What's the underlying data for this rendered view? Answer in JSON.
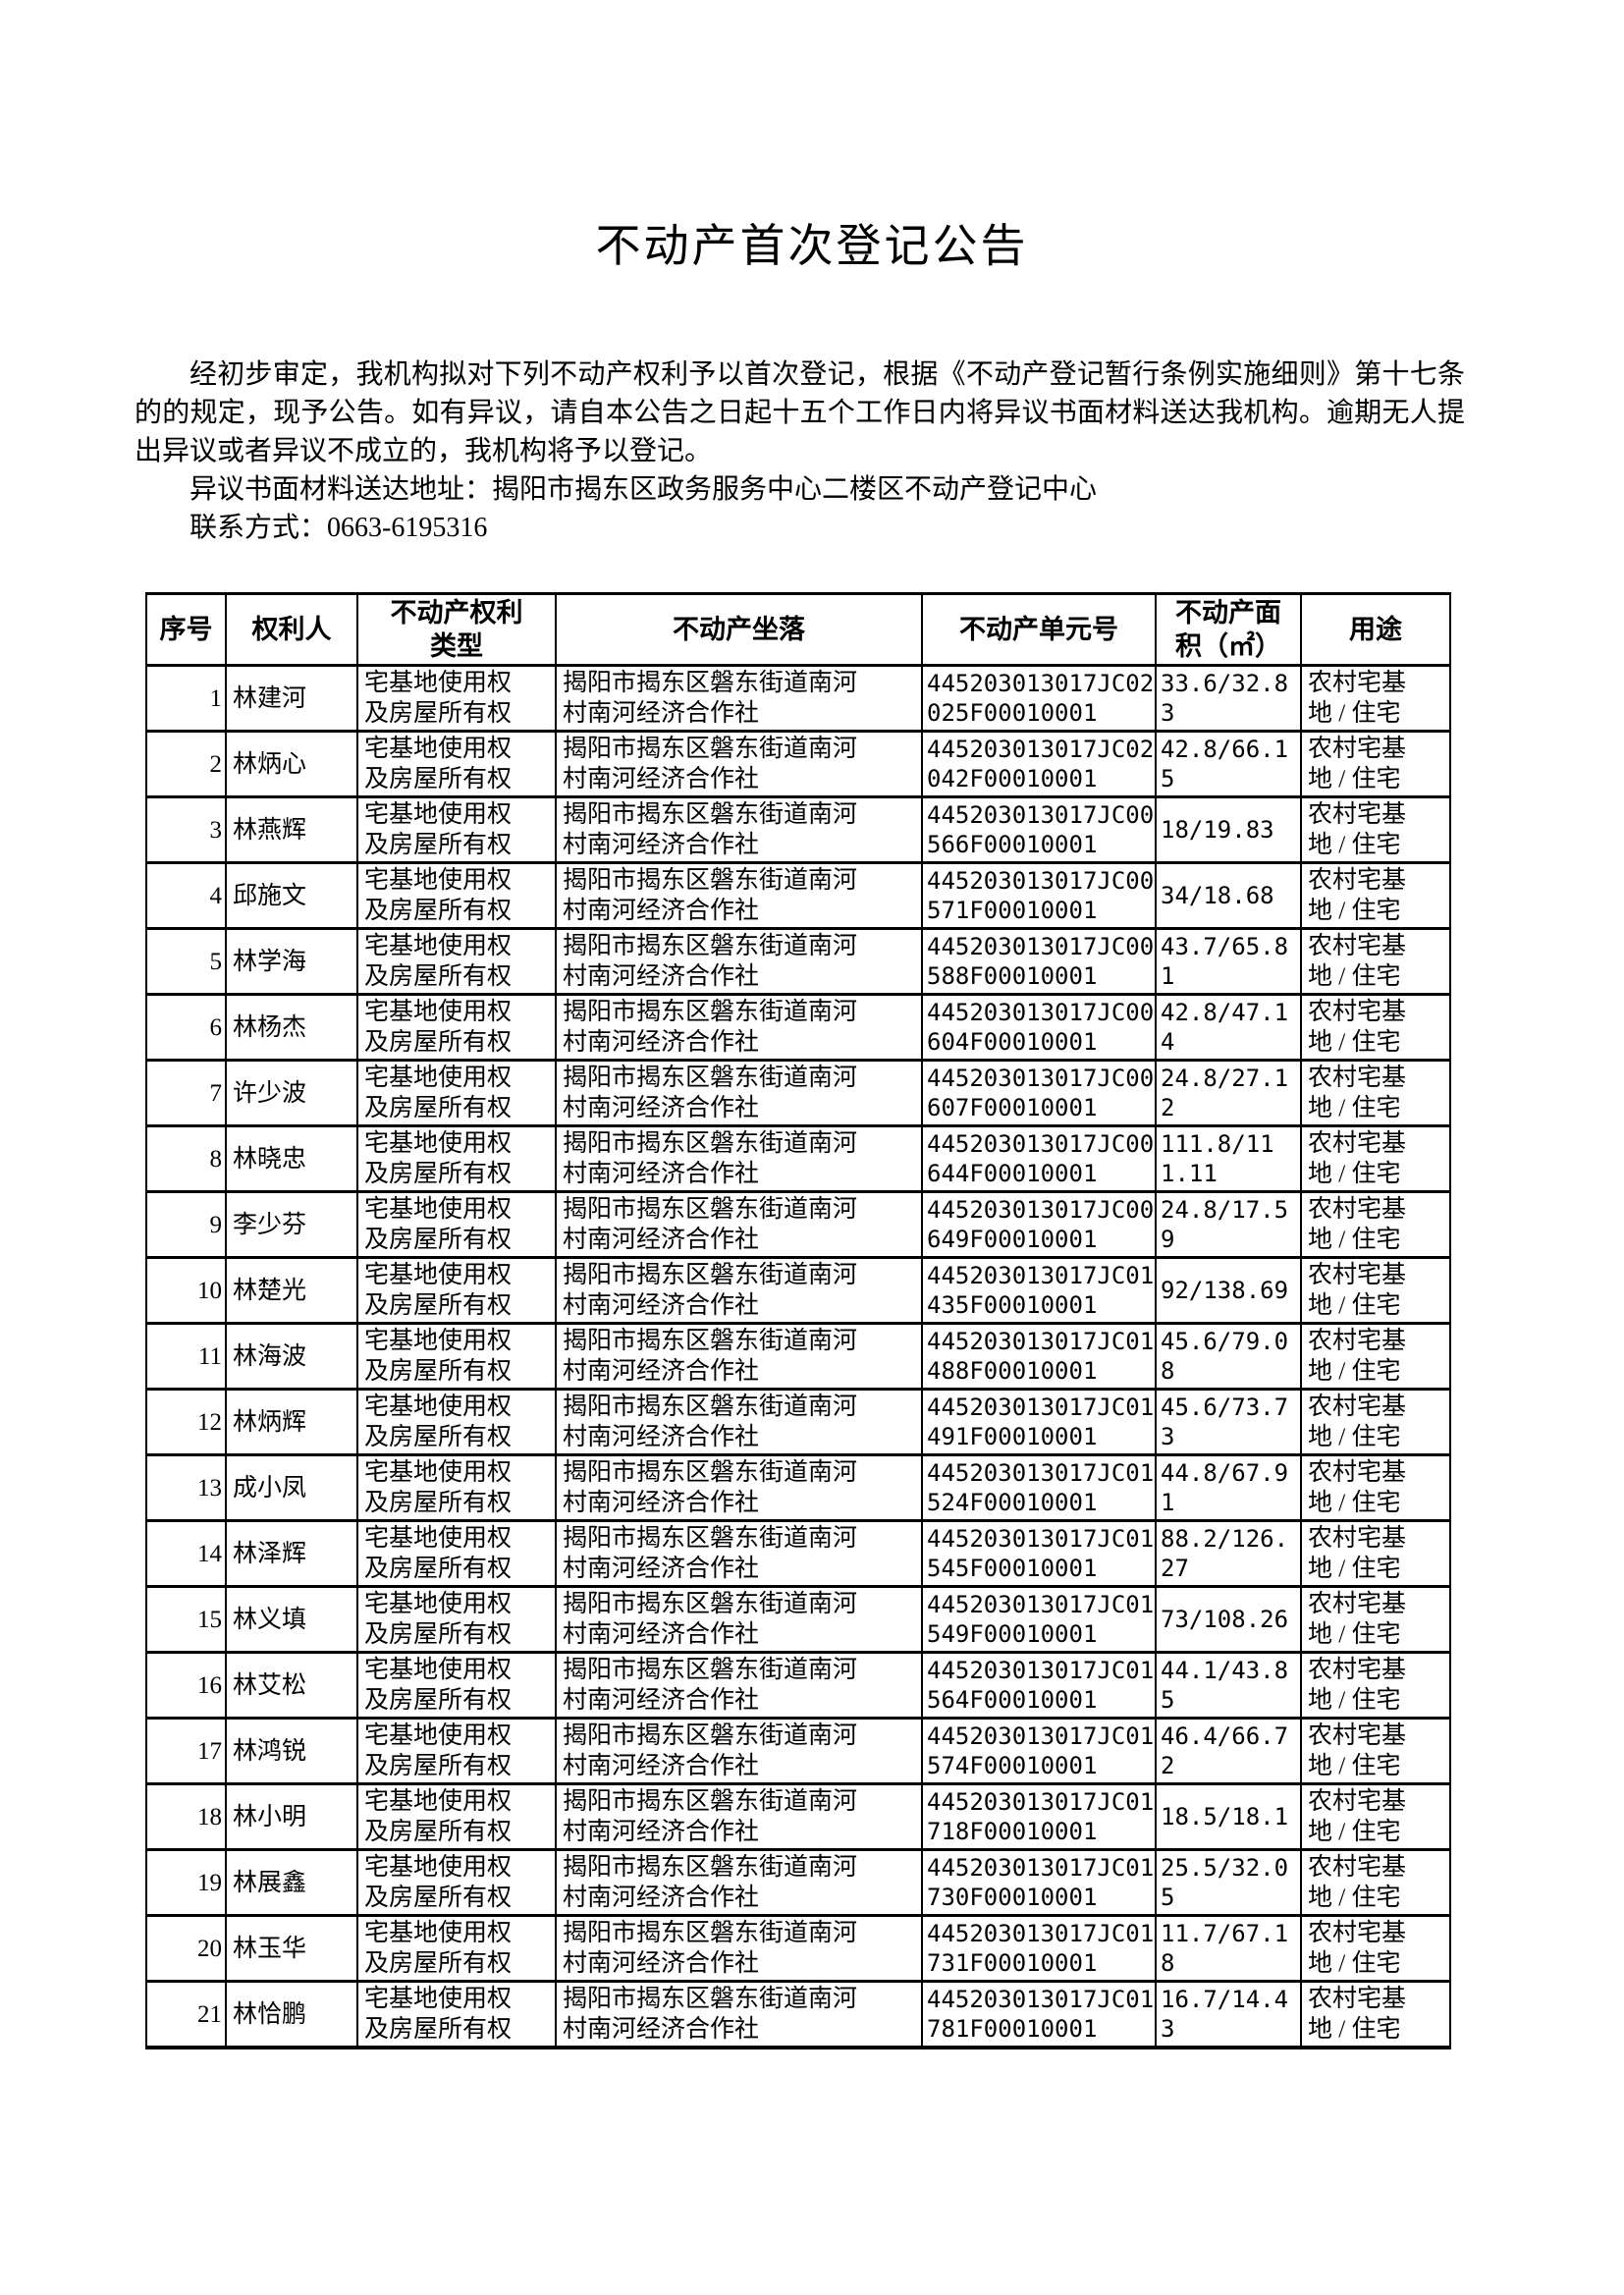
{
  "page": {
    "title": "不动产首次登记公告",
    "intro": "经初步审定，我机构拟对下列不动产权利予以首次登记，根据《不动产登记暂行条例实施细则》第十七条的的规定，现予公告。如有异议，请自本公告之日起十五个工作日内将异议书面材料送达我机构。逾期无人提出异议或者异议不成立的，我机构将予以登记。",
    "address_line": "异议书面材料送达地址：揭阳市揭东区政务服务中心二楼区不动产登记中心",
    "contact_line": "联系方式：0663-6195316"
  },
  "table": {
    "columns": [
      "序号",
      "权利人",
      "不动产权利类型",
      "不动产坐落",
      "不动产单元号",
      "不动产面积（㎡）",
      "用途"
    ],
    "rows": [
      {
        "no": "1",
        "owner": "林建河",
        "right_type": "宅基地使用权及房屋所有权",
        "location": "揭阳市揭东区磐东街道南河村南河经济合作社",
        "unit_no": "445203013017JC02025F00010001",
        "area": "33.6/32.83",
        "usage": "农村宅基地 / 住宅"
      },
      {
        "no": "2",
        "owner": "林炳心",
        "right_type": "宅基地使用权及房屋所有权",
        "location": "揭阳市揭东区磐东街道南河村南河经济合作社",
        "unit_no": "445203013017JC02042F00010001",
        "area": "42.8/66.15",
        "usage": "农村宅基地 / 住宅"
      },
      {
        "no": "3",
        "owner": "林燕辉",
        "right_type": "宅基地使用权及房屋所有权",
        "location": "揭阳市揭东区磐东街道南河村南河经济合作社",
        "unit_no": "445203013017JC00566F00010001",
        "area": "18/19.83",
        "usage": "农村宅基地 / 住宅"
      },
      {
        "no": "4",
        "owner": "邱施文",
        "right_type": "宅基地使用权及房屋所有权",
        "location": "揭阳市揭东区磐东街道南河村南河经济合作社",
        "unit_no": "445203013017JC00571F00010001",
        "area": "34/18.68",
        "usage": "农村宅基地 / 住宅"
      },
      {
        "no": "5",
        "owner": "林学海",
        "right_type": "宅基地使用权及房屋所有权",
        "location": "揭阳市揭东区磐东街道南河村南河经济合作社",
        "unit_no": "445203013017JC00588F00010001",
        "area": "43.7/65.81",
        "usage": "农村宅基地 / 住宅"
      },
      {
        "no": "6",
        "owner": "林杨杰",
        "right_type": "宅基地使用权及房屋所有权",
        "location": "揭阳市揭东区磐东街道南河村南河经济合作社",
        "unit_no": "445203013017JC00604F00010001",
        "area": "42.8/47.14",
        "usage": "农村宅基地 / 住宅"
      },
      {
        "no": "7",
        "owner": "许少波",
        "right_type": "宅基地使用权及房屋所有权",
        "location": "揭阳市揭东区磐东街道南河村南河经济合作社",
        "unit_no": "445203013017JC00607F00010001",
        "area": "24.8/27.12",
        "usage": "农村宅基地 / 住宅"
      },
      {
        "no": "8",
        "owner": "林晓忠",
        "right_type": "宅基地使用权及房屋所有权",
        "location": "揭阳市揭东区磐东街道南河村南河经济合作社",
        "unit_no": "445203013017JC00644F00010001",
        "area": "111.8/111.11",
        "usage": "农村宅基地 / 住宅"
      },
      {
        "no": "9",
        "owner": "李少芬",
        "right_type": "宅基地使用权及房屋所有权",
        "location": "揭阳市揭东区磐东街道南河村南河经济合作社",
        "unit_no": "445203013017JC00649F00010001",
        "area": "24.8/17.59",
        "usage": "农村宅基地 / 住宅"
      },
      {
        "no": "10",
        "owner": "林楚光",
        "right_type": "宅基地使用权及房屋所有权",
        "location": "揭阳市揭东区磐东街道南河村南河经济合作社",
        "unit_no": "445203013017JC01435F00010001",
        "area": "92/138.69",
        "usage": "农村宅基地 / 住宅"
      },
      {
        "no": "11",
        "owner": "林海波",
        "right_type": "宅基地使用权及房屋所有权",
        "location": "揭阳市揭东区磐东街道南河村南河经济合作社",
        "unit_no": "445203013017JC01488F00010001",
        "area": "45.6/79.08",
        "usage": "农村宅基地 / 住宅"
      },
      {
        "no": "12",
        "owner": "林炳辉",
        "right_type": "宅基地使用权及房屋所有权",
        "location": "揭阳市揭东区磐东街道南河村南河经济合作社",
        "unit_no": "445203013017JC01491F00010001",
        "area": "45.6/73.73",
        "usage": "农村宅基地 / 住宅"
      },
      {
        "no": "13",
        "owner": "成小凤",
        "right_type": "宅基地使用权及房屋所有权",
        "location": "揭阳市揭东区磐东街道南河村南河经济合作社",
        "unit_no": "445203013017JC01524F00010001",
        "area": "44.8/67.91",
        "usage": "农村宅基地 / 住宅"
      },
      {
        "no": "14",
        "owner": "林泽辉",
        "right_type": "宅基地使用权及房屋所有权",
        "location": "揭阳市揭东区磐东街道南河村南河经济合作社",
        "unit_no": "445203013017JC01545F00010001",
        "area": "88.2/126.27",
        "usage": "农村宅基地 / 住宅"
      },
      {
        "no": "15",
        "owner": "林义填",
        "right_type": "宅基地使用权及房屋所有权",
        "location": "揭阳市揭东区磐东街道南河村南河经济合作社",
        "unit_no": "445203013017JC01549F00010001",
        "area": "73/108.26",
        "usage": "农村宅基地 / 住宅"
      },
      {
        "no": "16",
        "owner": "林艾松",
        "right_type": "宅基地使用权及房屋所有权",
        "location": "揭阳市揭东区磐东街道南河村南河经济合作社",
        "unit_no": "445203013017JC01564F00010001",
        "area": "44.1/43.85",
        "usage": "农村宅基地 / 住宅"
      },
      {
        "no": "17",
        "owner": "林鸿锐",
        "right_type": "宅基地使用权及房屋所有权",
        "location": "揭阳市揭东区磐东街道南河村南河经济合作社",
        "unit_no": "445203013017JC01574F00010001",
        "area": "46.4/66.72",
        "usage": "农村宅基地 / 住宅"
      },
      {
        "no": "18",
        "owner": "林小明",
        "right_type": "宅基地使用权及房屋所有权",
        "location": "揭阳市揭东区磐东街道南河村南河经济合作社",
        "unit_no": "445203013017JC01718F00010001",
        "area": "18.5/18.1",
        "usage": "农村宅基地 / 住宅"
      },
      {
        "no": "19",
        "owner": "林展鑫",
        "right_type": "宅基地使用权及房屋所有权",
        "location": "揭阳市揭东区磐东街道南河村南河经济合作社",
        "unit_no": "445203013017JC01730F00010001",
        "area": "25.5/32.05",
        "usage": "农村宅基地 / 住宅"
      },
      {
        "no": "20",
        "owner": "林玉华",
        "right_type": "宅基地使用权及房屋所有权",
        "location": "揭阳市揭东区磐东街道南河村南河经济合作社",
        "unit_no": "445203013017JC01731F00010001",
        "area": "11.7/67.18",
        "usage": "农村宅基地 / 住宅"
      },
      {
        "no": "21",
        "owner": "林恰鹏",
        "right_type": "宅基地使用权及房屋所有权",
        "location": "揭阳市揭东区磐东街道南河村南河经济合作社",
        "unit_no": "445203013017JC01781F00010001",
        "area": "16.7/14.43",
        "usage": "农村宅基地 / 住宅"
      }
    ]
  }
}
